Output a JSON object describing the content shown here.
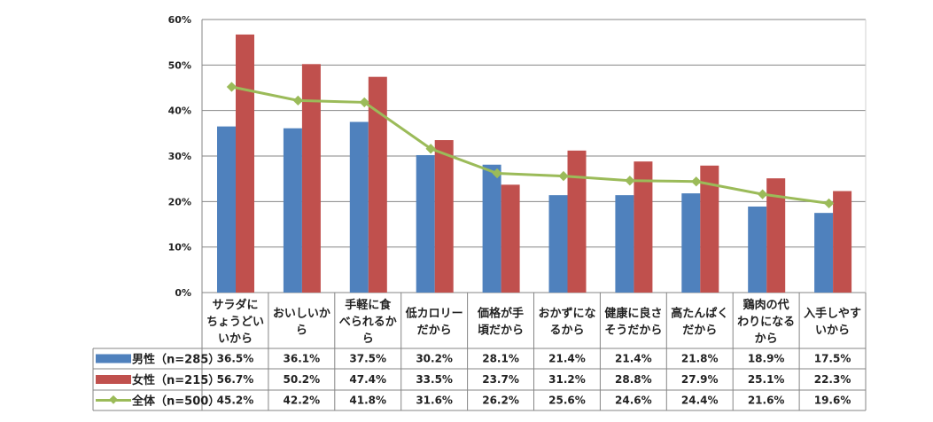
{
  "chart_data": {
    "type": "bar",
    "categories": [
      [
        "サラダに",
        "ちょうどい",
        "いから"
      ],
      [
        "おいしいか",
        "ら"
      ],
      [
        "手軽に食",
        "べられるか",
        "ら"
      ],
      [
        "低カロリー",
        "だから"
      ],
      [
        "価格が手",
        "頃だから"
      ],
      [
        "おかずにな",
        "るから"
      ],
      [
        "健康に良さ",
        "そうだから"
      ],
      [
        "高たんぱく",
        "だから"
      ],
      [
        "鶏肉の代",
        "わりになる",
        "から"
      ],
      [
        "入手しやす",
        "いから"
      ]
    ],
    "series": [
      {
        "name": "男性（n=285）",
        "kind": "bar",
        "color": "#4F81BD",
        "values": [
          36.5,
          36.1,
          37.5,
          30.2,
          28.1,
          21.4,
          21.4,
          21.8,
          18.9,
          17.5
        ],
        "labels": [
          "36.5%",
          "36.1%",
          "37.5%",
          "30.2%",
          "28.1%",
          "21.4%",
          "21.4%",
          "21.8%",
          "18.9%",
          "17.5%"
        ]
      },
      {
        "name": "女性（n=215）",
        "kind": "bar",
        "color": "#C0504D",
        "values": [
          56.7,
          50.2,
          47.4,
          33.5,
          23.7,
          31.2,
          28.8,
          27.9,
          25.1,
          22.3
        ],
        "labels": [
          "56.7%",
          "50.2%",
          "47.4%",
          "33.5%",
          "23.7%",
          "31.2%",
          "28.8%",
          "27.9%",
          "25.1%",
          "22.3%"
        ]
      },
      {
        "name": "全体（n=500）",
        "kind": "line",
        "color": "#9BBB59",
        "values": [
          45.2,
          42.2,
          41.8,
          31.6,
          26.2,
          25.6,
          24.6,
          24.4,
          21.6,
          19.6
        ],
        "labels": [
          "45.2%",
          "42.2%",
          "41.8%",
          "31.6%",
          "26.2%",
          "25.6%",
          "24.6%",
          "24.4%",
          "21.6%",
          "19.6%"
        ]
      }
    ],
    "ylim": [
      0,
      60
    ],
    "yticks": [
      "0%",
      "10%",
      "20%",
      "30%",
      "40%",
      "50%",
      "60%"
    ],
    "grid": true,
    "legend": "data-table"
  }
}
